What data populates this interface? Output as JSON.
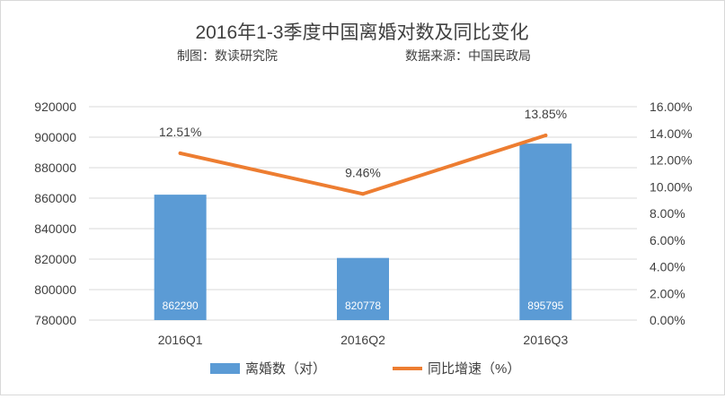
{
  "header": {
    "title": "2016年1-3季度中国离婚对数及同比变化",
    "producer": "制图：数读研究院",
    "source": "数据来源：中国民政局"
  },
  "colors": {
    "bar": "#5B9BD5",
    "line": "#ED7D31",
    "grid": "#D9D9D9",
    "text": "#404040",
    "bar_label": "#FFFFFF"
  },
  "chart_data": {
    "type": "bar",
    "categories": [
      "2016Q1",
      "2016Q2",
      "2016Q3"
    ],
    "series": [
      {
        "name": "离婚数（对）",
        "type": "bar",
        "axis": "left",
        "values": [
          862290,
          820778,
          895795
        ],
        "labels": [
          "862290",
          "820778",
          "895795"
        ]
      },
      {
        "name": "同比增速（%）",
        "type": "line",
        "axis": "right",
        "values": [
          12.51,
          9.46,
          13.85
        ],
        "labels": [
          "12.51%",
          "9.46%",
          "13.85%"
        ]
      }
    ],
    "y_left": {
      "ylim": [
        780000,
        920000
      ],
      "ticks": [
        "780000",
        "800000",
        "820000",
        "840000",
        "860000",
        "880000",
        "900000",
        "920000"
      ]
    },
    "y_right": {
      "ylim": [
        0,
        16
      ],
      "ticks": [
        "0.00%",
        "2.00%",
        "4.00%",
        "6.00%",
        "8.00%",
        "10.00%",
        "12.00%",
        "14.00%",
        "16.00%"
      ]
    },
    "grid": true,
    "legend_position": "bottom"
  }
}
